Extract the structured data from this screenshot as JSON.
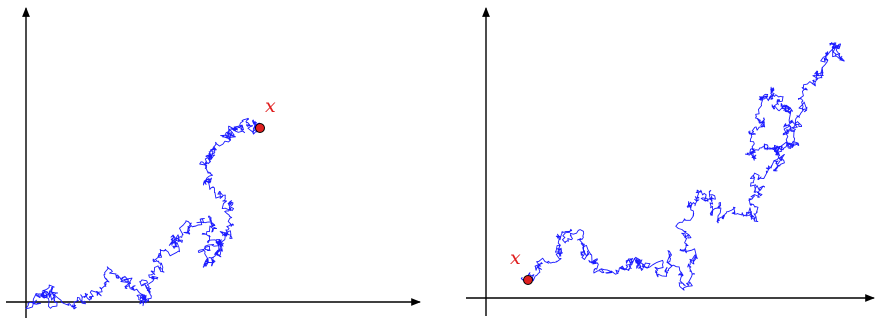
{
  "colors": {
    "axis": "#000000",
    "path": "#1a1aff",
    "point": "#e02020",
    "label": "#e02020"
  },
  "panels": [
    {
      "name": "left",
      "point_label": "x"
    },
    {
      "name": "right",
      "point_label": "x"
    }
  ]
}
